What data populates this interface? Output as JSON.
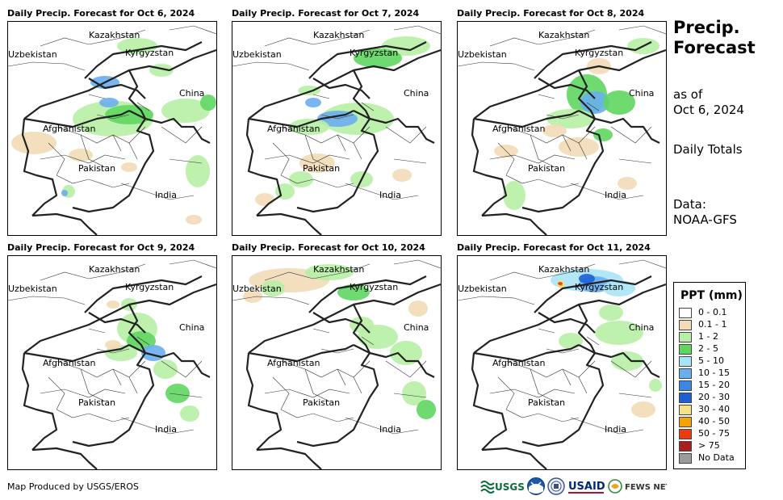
{
  "panels": [
    {
      "title": "Daily Precip. Forecast for Oct 6, 2024"
    },
    {
      "title": "Daily Precip. Forecast for Oct 7, 2024"
    },
    {
      "title": "Daily Precip. Forecast for Oct 8, 2024"
    },
    {
      "title": "Daily Precip. Forecast for Oct 9, 2024"
    },
    {
      "title": "Daily Precip. Forecast for Oct 10, 2024"
    },
    {
      "title": "Daily Precip. Forecast for Oct 11, 2024"
    }
  ],
  "map_labels": {
    "kazakhstan": "Kazakhstan",
    "uzbekistan": "Uzbekistan",
    "kyrgyzstan": "Kyrgyzstan",
    "china": "China",
    "afghanistan": "Afghanistan",
    "pakistan": "Pakistan",
    "india": "India"
  },
  "side": {
    "title_line1": "Precip.",
    "title_line2": "Forecast",
    "asof_line1": "as of",
    "asof_line2": "Oct 6, 2024",
    "daily": "Daily Totals",
    "data_line1": "Data:",
    "data_line2": "NOAA-GFS"
  },
  "legend": {
    "title": "PPT (mm)",
    "items": [
      {
        "label": "0 - 0.1",
        "color": "#ffffff"
      },
      {
        "label": "0.1 - 1",
        "color": "#f2dcb6"
      },
      {
        "label": "1 - 2",
        "color": "#b7f0a5"
      },
      {
        "label": "2 - 5",
        "color": "#5fd65f"
      },
      {
        "label": "5 - 10",
        "color": "#a8e4f5"
      },
      {
        "label": "10 - 15",
        "color": "#6aaef0"
      },
      {
        "label": "15 - 20",
        "color": "#3b86e6"
      },
      {
        "label": "20 - 30",
        "color": "#1e5fd6"
      },
      {
        "label": "30 - 40",
        "color": "#f7e08a"
      },
      {
        "label": "40 - 50",
        "color": "#f5a300"
      },
      {
        "label": "50 - 75",
        "color": "#ee3b0e"
      },
      {
        "label": "> 75",
        "color": "#a81f1f"
      },
      {
        "label": "No Data",
        "color": "#9b9b9b"
      }
    ]
  },
  "footer": {
    "credit": "Map Produced by USGS/EROS"
  },
  "logos": {
    "usgs": "USGS",
    "usaid": "USAID",
    "fews": "FEWS NET"
  }
}
